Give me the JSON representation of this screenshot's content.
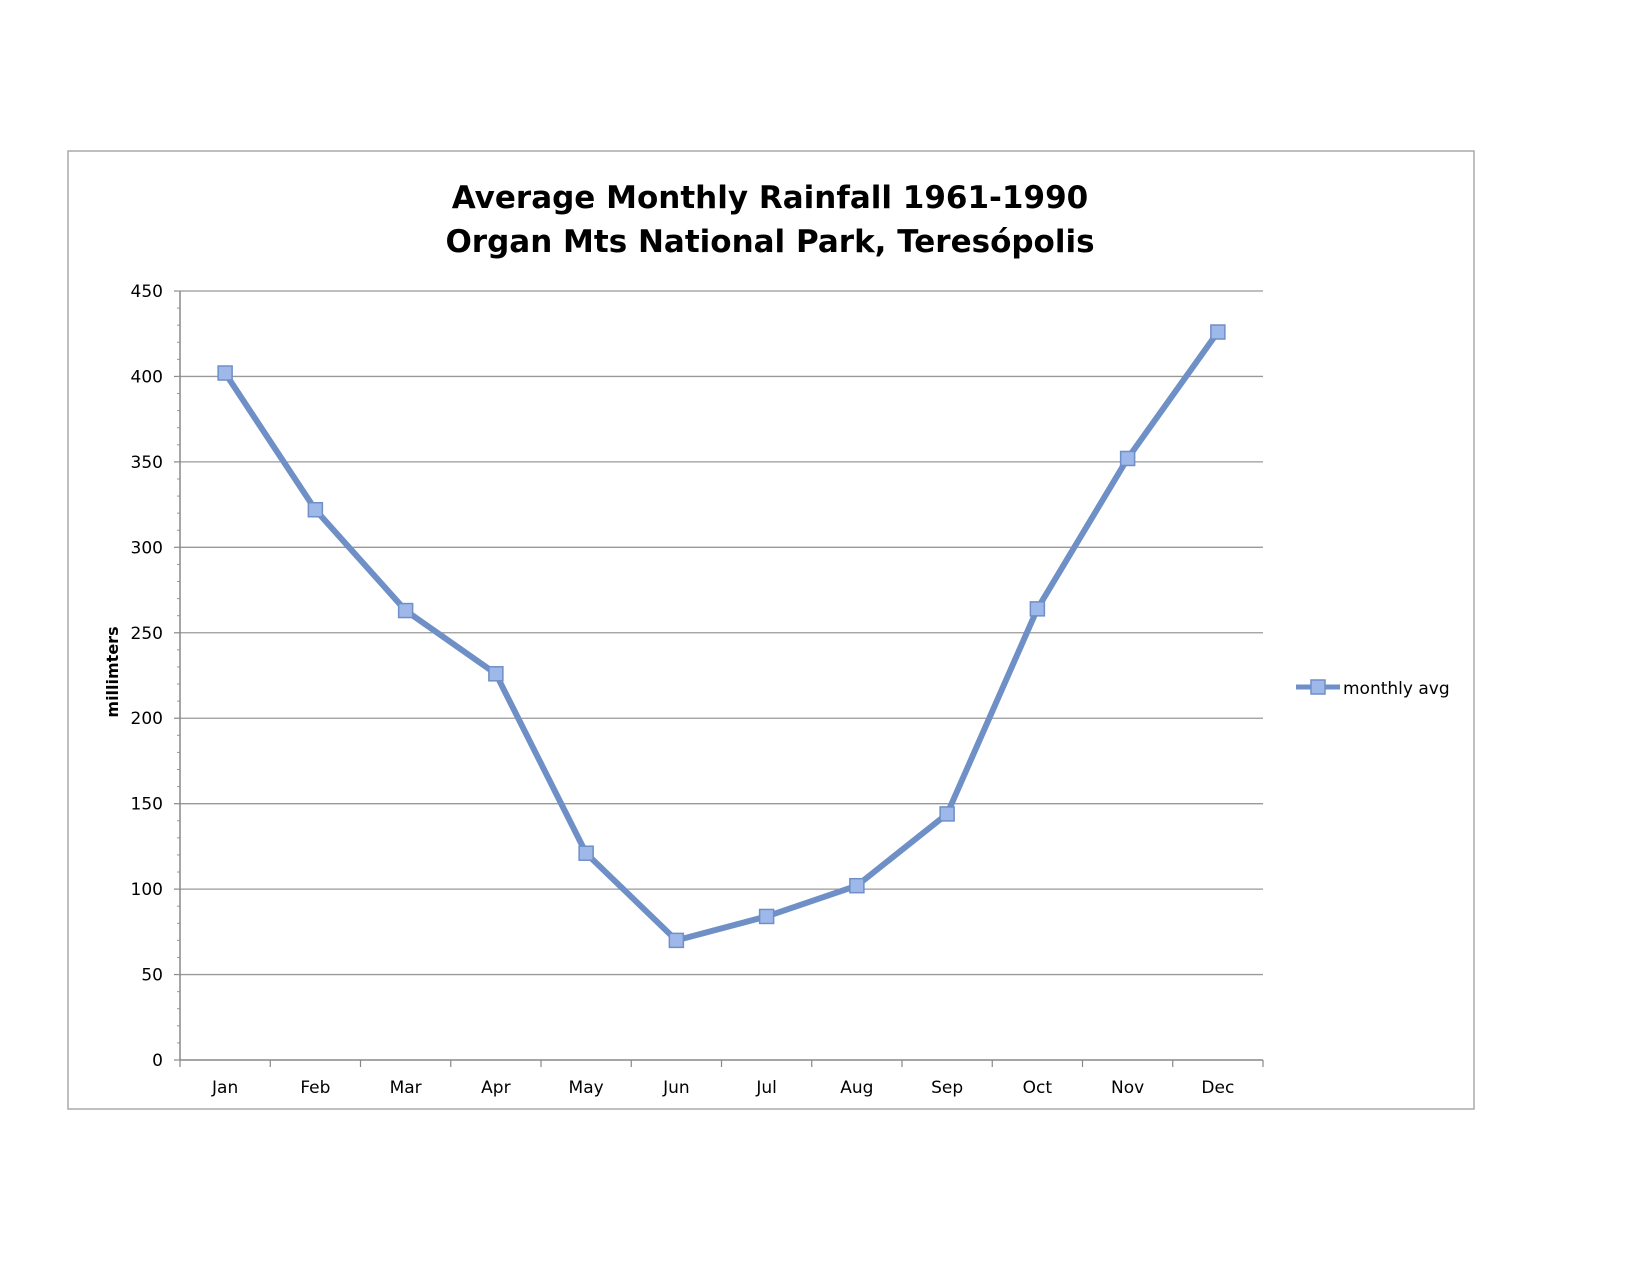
{
  "chart_data": {
    "type": "line",
    "title": [
      "Average Monthly Rainfall 1961-1990",
      "Organ Mts National Park, Teresópolis"
    ],
    "xlabel": "",
    "ylabel": "millimters",
    "categories": [
      "Jan",
      "Feb",
      "Mar",
      "Apr",
      "May",
      "Jun",
      "Jul",
      "Aug",
      "Sep",
      "Oct",
      "Nov",
      "Dec"
    ],
    "series": [
      {
        "name": "monthly avg",
        "values": [
          402,
          322,
          263,
          226,
          121,
          70,
          84,
          102,
          144,
          264,
          352,
          426
        ],
        "color": "#6f8fc7",
        "marker_color": "#9fb8ea"
      }
    ],
    "ylim": [
      0,
      450
    ],
    "yticks": [
      0,
      50,
      100,
      150,
      200,
      250,
      300,
      350,
      400,
      450
    ],
    "grid": true,
    "legend_position": "right"
  }
}
